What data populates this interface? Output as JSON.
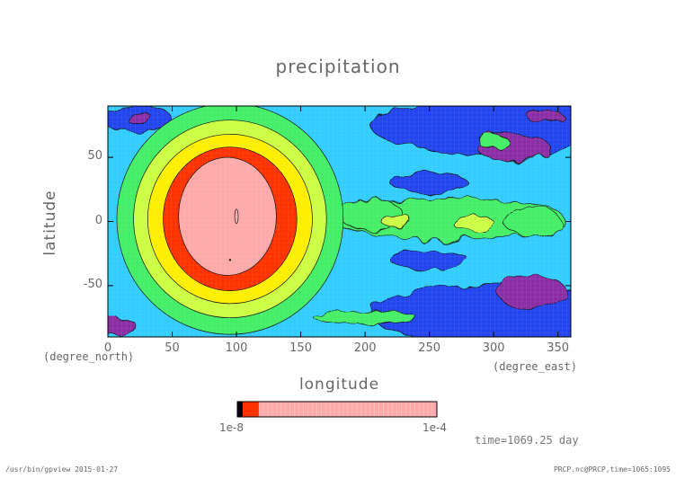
{
  "chart_data": {
    "type": "heatmap",
    "title": "precipitation",
    "xlabel": "longitude",
    "ylabel": "latitude",
    "x_unit": "(degree_east)",
    "y_unit": "(degree_north)",
    "xlim": [
      0,
      360
    ],
    "ylim": [
      -90,
      90
    ],
    "x_ticks": [
      0,
      50,
      100,
      150,
      200,
      250,
      300,
      350
    ],
    "y_ticks": [
      -50,
      0,
      50
    ],
    "colorbar": {
      "min_label": "1e-8",
      "max_label": "1e-4",
      "colors": [
        "#000000",
        "#ff3300",
        "#ffaaaa"
      ]
    },
    "contour_levels": [
      {
        "level": 1,
        "color": "#8b2fa6"
      },
      {
        "level": 2,
        "color": "#2244ee"
      },
      {
        "level": 3,
        "color": "#33ccff"
      },
      {
        "level": 4,
        "color": "#44ee66"
      },
      {
        "level": 5,
        "color": "#ccff44"
      },
      {
        "level": 6,
        "color": "#ffee00"
      },
      {
        "level": 7,
        "color": "#ff3300"
      },
      {
        "level": 8,
        "color": "#ffaaaa"
      }
    ]
  },
  "annotations": {
    "time": "time=1069.25 day"
  },
  "footer": {
    "left": "/usr/bin/gpview  2015-01-27",
    "right": "PRCP.nc@PRCP,time=1065:1095"
  }
}
